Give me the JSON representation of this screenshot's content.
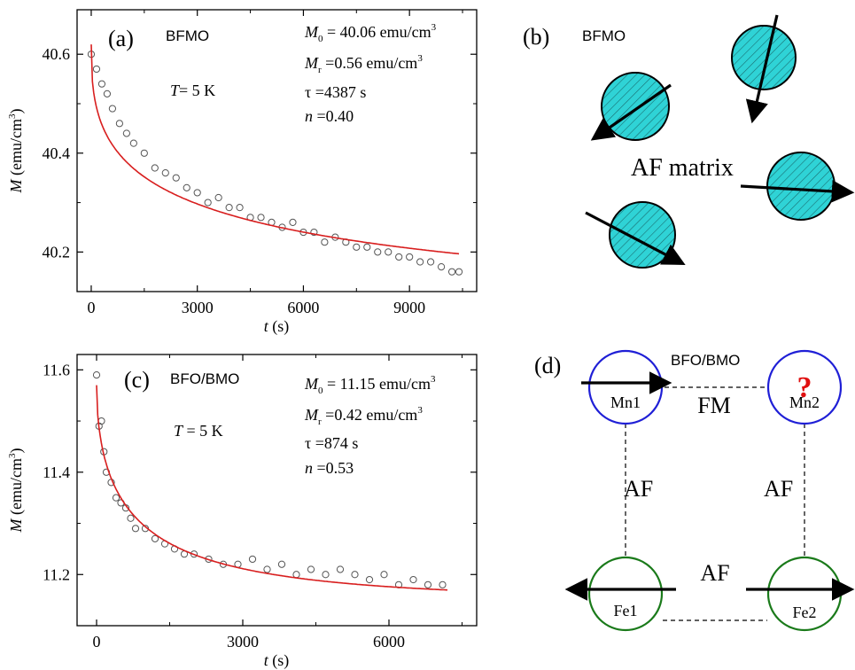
{
  "colors": {
    "fit_line": "#d81e1e",
    "marker_stroke": "#555555",
    "cluster_fill": "#2fd3d6",
    "mn_circle": "#1f1fd6",
    "fe_circle": "#1a7a1a",
    "question": "#e01010",
    "axis": "#000000"
  },
  "chart_data": [
    {
      "panel": "(a)",
      "type": "scatter",
      "sample": "BFMO",
      "temperature": "T= 5 K",
      "params": {
        "M0": "M0 = 40.06 emu/cm3",
        "Mr": "Mr =0.56 emu/cm3",
        "tau": "τ =4387 s",
        "n": "n =0.40"
      },
      "xlabel": "t (s)",
      "ylabel": "M (emu/cm3)",
      "xlim": [
        -400,
        10900
      ],
      "ylim": [
        40.12,
        40.69
      ],
      "xticks": [
        0,
        3000,
        6000,
        9000
      ],
      "yticks": [
        40.2,
        40.4,
        40.6
      ],
      "fit": {
        "M0": 40.06,
        "Mr": 0.56,
        "tau": 4387,
        "n": 0.4,
        "x_start": 0,
        "x_end": 10400
      },
      "series": [
        {
          "type": "scatter",
          "x": [
            0,
            150,
            300,
            450,
            600,
            800,
            1000,
            1200,
            1500,
            1800,
            2100,
            2400,
            2700,
            3000,
            3300,
            3600,
            3900,
            4200,
            4500,
            4800,
            5100,
            5400,
            5700,
            6000,
            6300,
            6600,
            6900,
            7200,
            7500,
            7800,
            8100,
            8400,
            8700,
            9000,
            9300,
            9600,
            9900,
            10200,
            10400
          ],
          "y": [
            40.6,
            40.57,
            40.54,
            40.52,
            40.49,
            40.46,
            40.44,
            40.42,
            40.4,
            40.37,
            40.36,
            40.35,
            40.33,
            40.32,
            40.3,
            40.31,
            40.29,
            40.29,
            40.27,
            40.27,
            40.26,
            40.25,
            40.26,
            40.24,
            40.24,
            40.22,
            40.23,
            40.22,
            40.21,
            40.21,
            40.2,
            40.2,
            40.19,
            40.19,
            40.18,
            40.18,
            40.17,
            40.16,
            40.16
          ]
        }
      ]
    },
    {
      "panel": "(c)",
      "type": "scatter",
      "sample": "BFO/BMO",
      "temperature": "T= 5 K",
      "params": {
        "M0": "M0 = 11.15 emu/cm3",
        "Mr": "Mr =0.42 emu/cm3",
        "tau": "τ =874 s",
        "n": "n =0.53"
      },
      "xlabel": "t (s)",
      "ylabel": "M (emu/cm3)",
      "xlim": [
        -400,
        7800
      ],
      "ylim": [
        11.1,
        11.63
      ],
      "xticks": [
        0,
        3000,
        6000
      ],
      "yticks": [
        11.2,
        11.4,
        11.6
      ],
      "fit": {
        "M0": 11.15,
        "Mr": 0.42,
        "tau": 874,
        "n": 0.53,
        "x_start": 0,
        "x_end": 7200
      },
      "series": [
        {
          "type": "scatter",
          "x": [
            0,
            50,
            100,
            150,
            200,
            300,
            400,
            500,
            600,
            700,
            800,
            1000,
            1200,
            1400,
            1600,
            1800,
            2000,
            2300,
            2600,
            2900,
            3200,
            3500,
            3800,
            4100,
            4400,
            4700,
            5000,
            5300,
            5600,
            5900,
            6200,
            6500,
            6800,
            7100
          ],
          "y": [
            11.59,
            11.49,
            11.5,
            11.44,
            11.4,
            11.38,
            11.35,
            11.34,
            11.33,
            11.31,
            11.29,
            11.29,
            11.27,
            11.26,
            11.25,
            11.24,
            11.24,
            11.23,
            11.22,
            11.22,
            11.23,
            11.21,
            11.22,
            11.2,
            11.21,
            11.2,
            11.21,
            11.2,
            11.19,
            11.2,
            11.18,
            11.19,
            11.18,
            11.18
          ]
        }
      ]
    }
  ],
  "panel_b": {
    "label": "(b)",
    "sample": "BFMO",
    "matrix_label": "AF matrix"
  },
  "panel_d": {
    "label": "(d)",
    "sample": "BFO/BMO",
    "sites": {
      "mn1": "Mn1",
      "mn2": "Mn2",
      "fe1": "Fe1",
      "fe2": "Fe2"
    },
    "bond_labels": {
      "top": "FM",
      "left": "AF",
      "right": "AF",
      "bottom": "AF"
    },
    "question_mark": "?"
  }
}
